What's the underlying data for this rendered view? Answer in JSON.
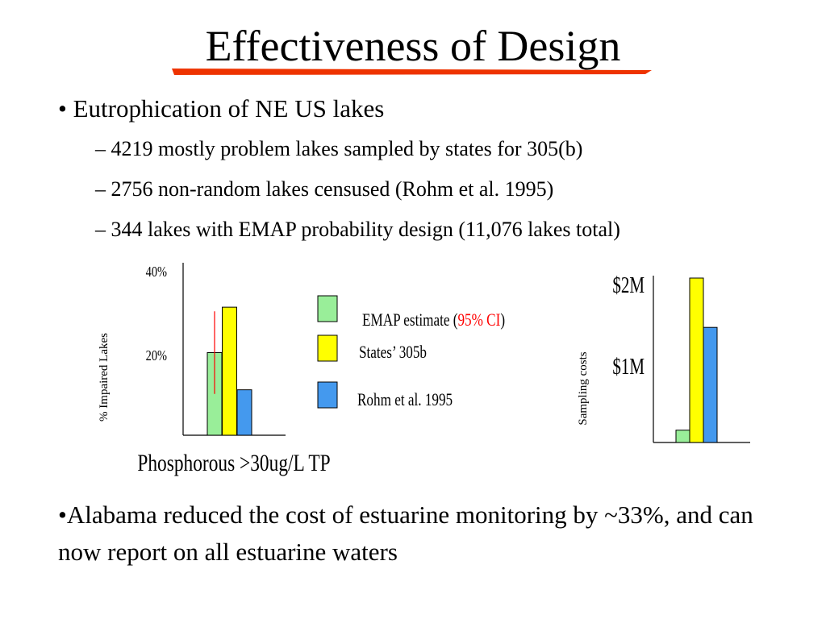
{
  "title": "Effectiveness of Design",
  "bullets": {
    "main1": "Eutrophication of NE US lakes",
    "subs": [
      "4219 mostly problem lakes sampled by states for 305(b)",
      "2756 non-random lakes censused (Rohm et al. 1995)",
      "344 lakes with EMAP probability design (11,076 lakes total)"
    ],
    "main2": "Alabama reduced the cost of estuarine monitoring by ~33%, and can now report on all estuarine waters",
    "bullet_symbol": "•",
    "dash_symbol": "–"
  },
  "colors": {
    "emap": "#99ee99",
    "states": "#ffff00",
    "rohm": "#4499ee",
    "ci": "#ff0000",
    "title_underline": "#ee3300"
  },
  "legend": {
    "emap_prefix": "EMAP estimate (",
    "emap_ci": "95% CI",
    "emap_suffix": ")",
    "states": "States’ 305b",
    "rohm": "Rohm et al. 1995"
  },
  "chart_data": [
    {
      "type": "bar",
      "xlabel": "Phosphorous >30ug/L TP",
      "ylabel": "% Impaired Lakes",
      "yticks": [
        "20%",
        "40%"
      ],
      "ylim": [
        0,
        40
      ],
      "series": [
        {
          "name": "EMAP estimate",
          "values": [
            20
          ],
          "ci": [
            10,
            30
          ]
        },
        {
          "name": "States’ 305b",
          "values": [
            31
          ]
        },
        {
          "name": "Rohm et al. 1995",
          "values": [
            11
          ]
        }
      ]
    },
    {
      "type": "bar",
      "ylabel": "Sampling costs",
      "yticks": [
        "$1M",
        "$2M"
      ],
      "ylim": [
        0,
        2
      ],
      "series": [
        {
          "name": "EMAP estimate",
          "values": [
            0.15
          ]
        },
        {
          "name": "States’ 305b",
          "values": [
            2.0
          ]
        },
        {
          "name": "Rohm et al. 1995",
          "values": [
            1.4
          ]
        }
      ]
    }
  ]
}
